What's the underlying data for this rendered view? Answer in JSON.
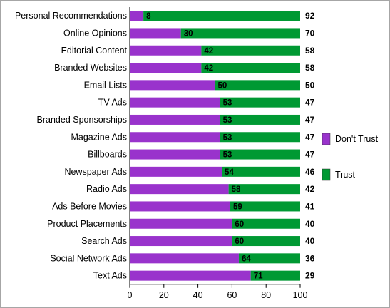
{
  "chart_data": {
    "type": "bar",
    "orientation": "horizontal",
    "stacked": true,
    "categories": [
      "Personal Recommendations",
      "Online Opinions",
      "Editorial Content",
      "Branded Websites",
      "Email Lists",
      "TV Ads",
      "Branded Sponsorships",
      "Magazine Ads",
      "Billboards",
      "Newspaper Ads",
      "Radio Ads",
      "Ads Before Movies",
      "Product Placements",
      "Search Ads",
      "Social Network Ads",
      "Text Ads"
    ],
    "series": [
      {
        "name": "Don't Trust",
        "color": "#9933cc",
        "values": [
          8,
          30,
          42,
          42,
          50,
          53,
          53,
          53,
          53,
          54,
          58,
          59,
          60,
          60,
          64,
          71
        ]
      },
      {
        "name": "Trust",
        "color": "#009933",
        "values": [
          92,
          70,
          58,
          58,
          50,
          47,
          47,
          47,
          47,
          46,
          42,
          41,
          40,
          40,
          36,
          29
        ]
      }
    ],
    "xlim": [
      0,
      100
    ],
    "xticks": [
      0,
      20,
      40,
      60,
      80,
      100
    ],
    "title": "",
    "xlabel": "",
    "ylabel": "",
    "grid": false,
    "legend_position": "right"
  }
}
